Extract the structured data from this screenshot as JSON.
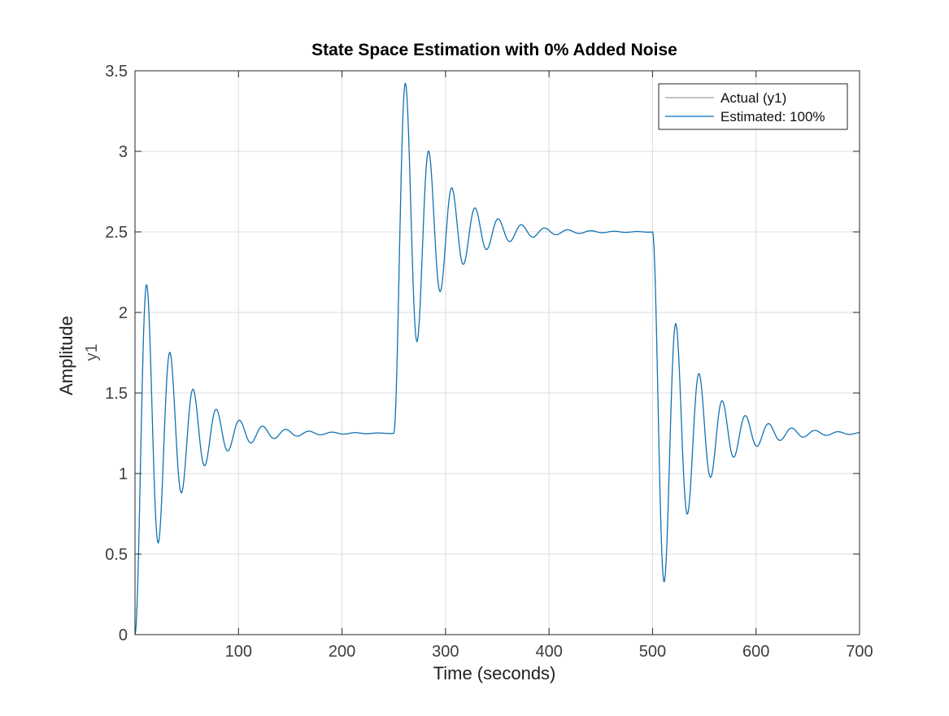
{
  "chart_data": {
    "type": "line",
    "title": "State Space Estimation with 0% Added Noise",
    "xlabel": "Time (seconds)",
    "ylabel": "Amplitude",
    "ylabel_channel": "y1",
    "xlim": [
      0,
      700
    ],
    "ylim": [
      0,
      3.5
    ],
    "xticks": [
      100,
      200,
      300,
      400,
      500,
      600,
      700
    ],
    "xtick_labels": [
      "100",
      "200",
      "300",
      "400",
      "500",
      "600",
      "700"
    ],
    "yticks": [
      0,
      0.5,
      1,
      1.5,
      2,
      2.5,
      3,
      3.5
    ],
    "ytick_labels": [
      "0",
      "0.5",
      "1",
      "1.5",
      "2",
      "2.5",
      "3",
      "3.5"
    ],
    "grid": true,
    "legend_position": "top-right",
    "series": [
      {
        "name": "Actual (y1)",
        "color": "#a0a0a0",
        "response": [
          {
            "t_start": 0,
            "t_end": 250,
            "from": 0,
            "to": 1.25,
            "peak": 2.19,
            "period": 22.4,
            "rise": 10.5
          },
          {
            "t_start": 250,
            "t_end": 500,
            "from": 1.25,
            "to": 2.5,
            "peak": 3.44,
            "period": 22.4,
            "rise": 10.5
          },
          {
            "t_start": 500,
            "t_end": 700,
            "from": 2.5,
            "to": 1.25,
            "peak": 0.31,
            "period": 22.4,
            "rise": 10.5
          }
        ]
      },
      {
        "name": "Estimated: 100%",
        "color": "#0072bd",
        "response": [
          {
            "t_start": 0,
            "t_end": 250,
            "from": 0,
            "to": 1.25,
            "peak": 2.19,
            "period": 22.4,
            "rise": 10.5
          },
          {
            "t_start": 250,
            "t_end": 500,
            "from": 1.25,
            "to": 2.5,
            "peak": 3.44,
            "period": 22.4,
            "rise": 10.5
          },
          {
            "t_start": 500,
            "t_end": 700,
            "from": 2.5,
            "to": 1.25,
            "peak": 0.31,
            "period": 22.4,
            "rise": 10.5
          }
        ]
      }
    ]
  }
}
